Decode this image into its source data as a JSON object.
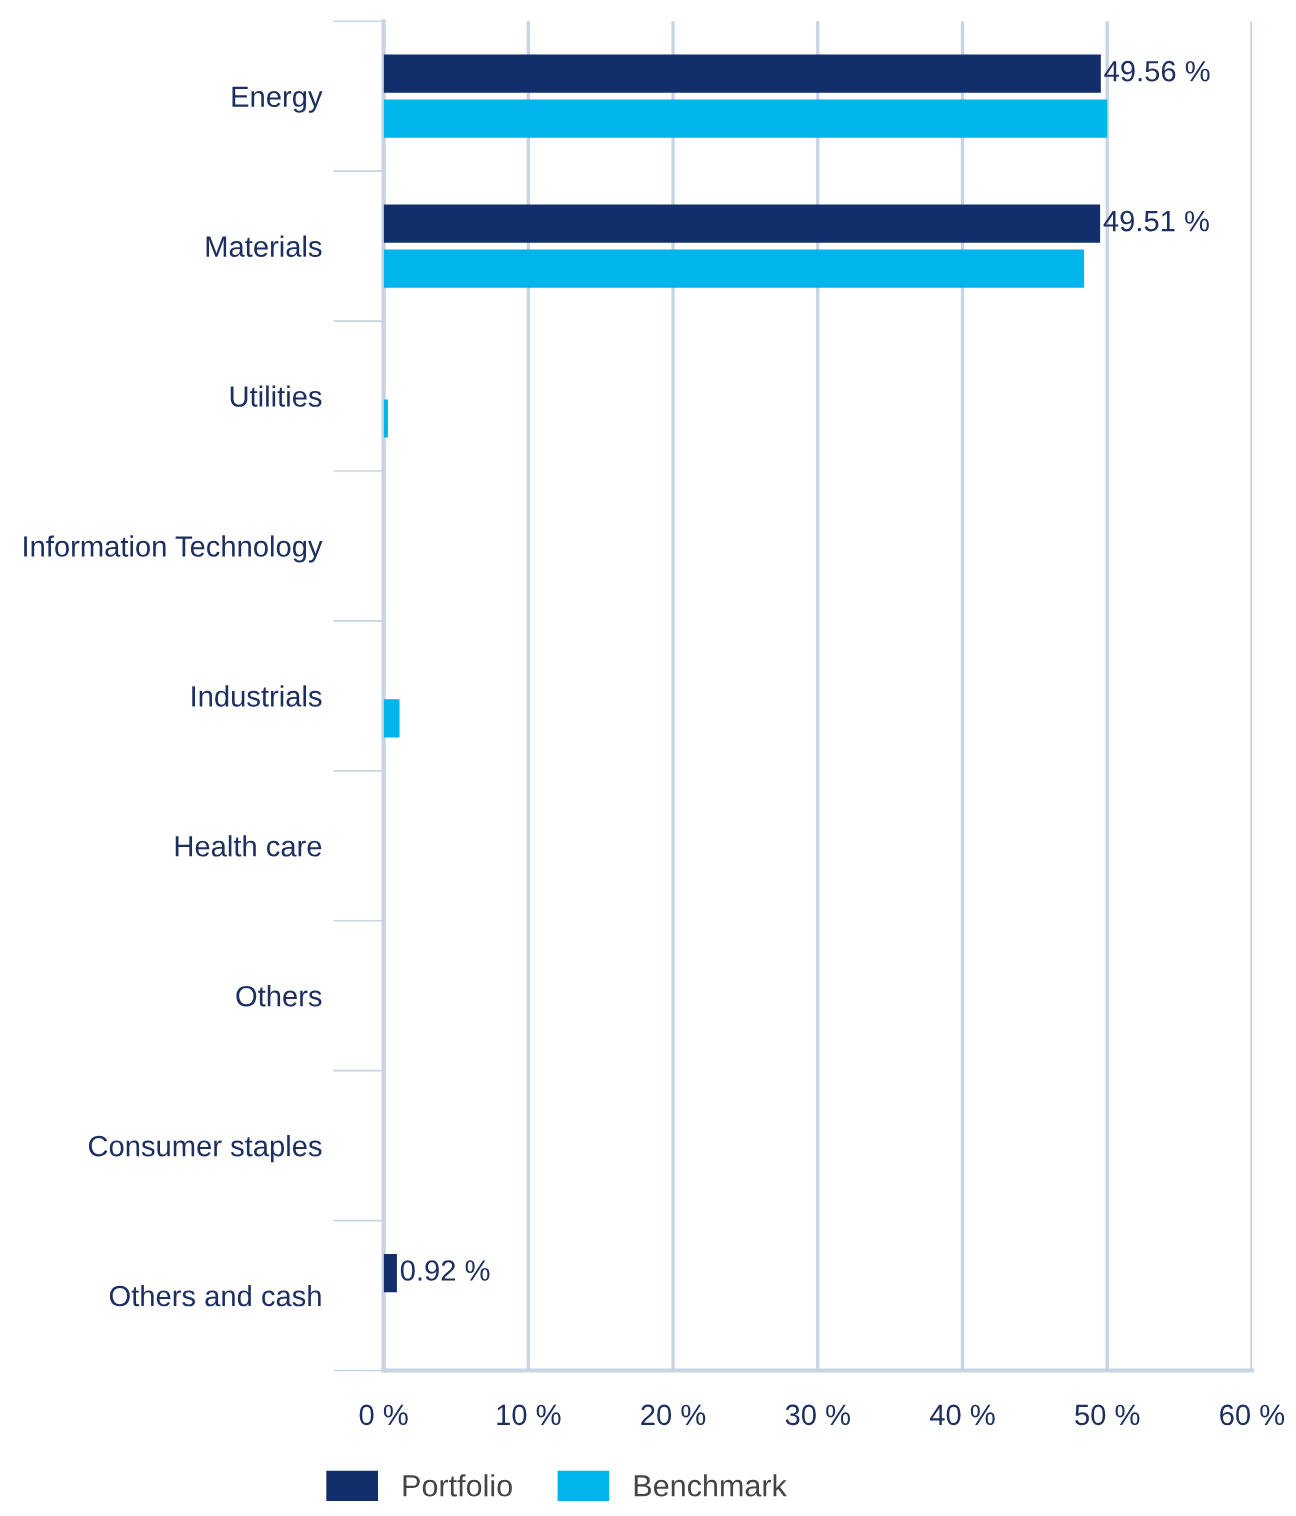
{
  "chart_data": {
    "type": "bar",
    "orientation": "horizontal",
    "categories": [
      "Energy",
      "Materials",
      "Utilities",
      "Information Technology",
      "Industrials",
      "Health care",
      "Others",
      "Consumer staples",
      "Others and cash"
    ],
    "series": [
      {
        "name": "Portfolio",
        "color": "#122e6b",
        "values": [
          49.56,
          49.51,
          null,
          null,
          null,
          null,
          null,
          null,
          0.92
        ],
        "value_labels": [
          "49.56 %",
          "49.51 %",
          null,
          null,
          null,
          null,
          null,
          null,
          "0.92 %"
        ]
      },
      {
        "name": "Benchmark",
        "color": "#00b5ec",
        "values": [
          50.0,
          48.4,
          0.3,
          null,
          1.1,
          null,
          null,
          null,
          null
        ]
      }
    ],
    "xlim": [
      0,
      60
    ],
    "xticks": [
      {
        "value": 0,
        "label": "0 %"
      },
      {
        "value": 10,
        "label": "10 %"
      },
      {
        "value": 20,
        "label": "20 %"
      },
      {
        "value": 30,
        "label": "30 %"
      },
      {
        "value": 40,
        "label": "40 %"
      },
      {
        "value": 50,
        "label": "50 %"
      },
      {
        "value": 60,
        "label": "60 %"
      }
    ],
    "grid": "x",
    "legend": "bottom"
  }
}
